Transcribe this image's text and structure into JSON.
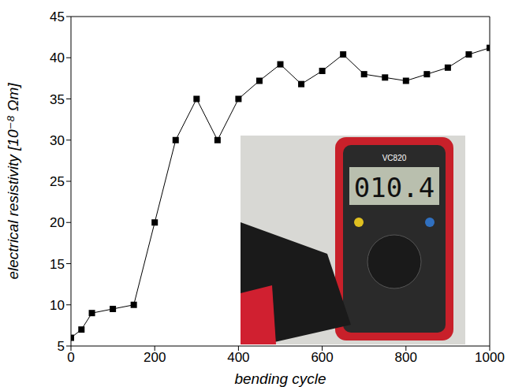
{
  "chart_data": {
    "type": "line",
    "x_label": "bending cycle",
    "y_label": "electrical resistivity  [10⁻⁸ Ωm]",
    "x": [
      0,
      25,
      50,
      100,
      150,
      200,
      250,
      300,
      350,
      400,
      450,
      500,
      550,
      600,
      650,
      700,
      750,
      800,
      850,
      900,
      950,
      1000
    ],
    "values": [
      6,
      7,
      9,
      9.5,
      10,
      20,
      30,
      35,
      30,
      35,
      37.2,
      39.2,
      36.8,
      38.4,
      40.4,
      38,
      37.6,
      37.2,
      38,
      38.8,
      40.4,
      41.2
    ],
    "color": "#000000",
    "marker": "square",
    "line_style": "solid",
    "xlim": [
      0,
      1000
    ],
    "xticks": [
      0,
      200,
      400,
      600,
      800,
      1000
    ],
    "ylim": [
      5,
      45
    ],
    "yticks": [
      5,
      10,
      15,
      20,
      25,
      30,
      35,
      40,
      45
    ],
    "grid": false,
    "annotations": [
      "VC820",
      "010.4"
    ]
  }
}
